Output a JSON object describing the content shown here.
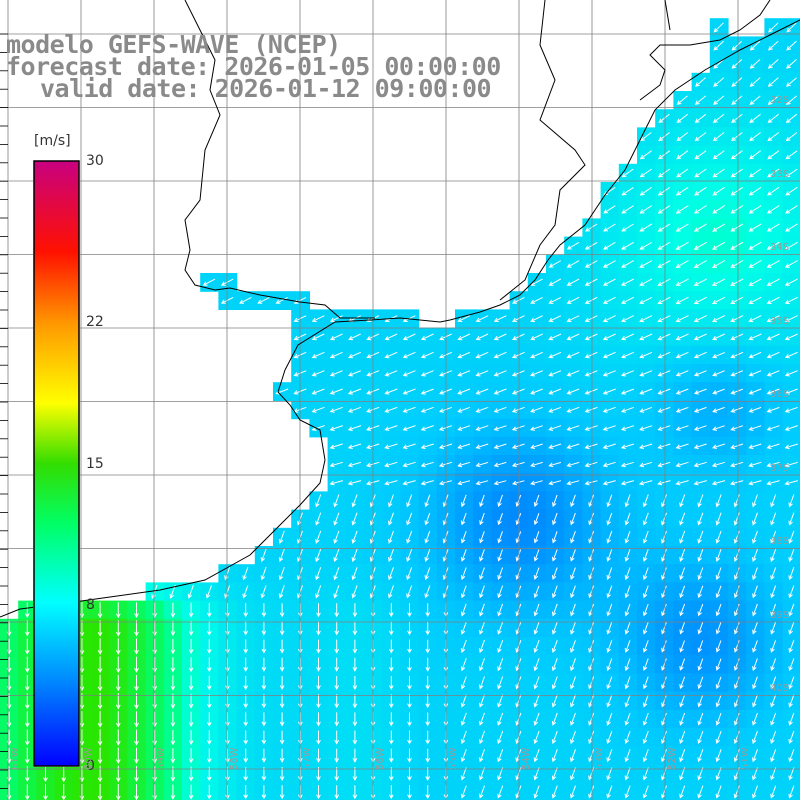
{
  "title": {
    "model": "modelo GEFS-WAVE (NCEP)",
    "forecast": "forecast date: 2026-01-05 00:00:00",
    "valid": "valid date: 2026-01-12 09:00:00"
  },
  "colorbar": {
    "unit": "[m/s]",
    "ticks": [
      "30",
      "22",
      "15",
      "8",
      "0"
    ],
    "tick_values": [
      30,
      22,
      15,
      8,
      0
    ],
    "range": [
      0,
      30
    ],
    "colors": [
      "#0000ff",
      "#00aaff",
      "#00ffff",
      "#00ff00",
      "#ffff00",
      "#ff9900",
      "#ff0000",
      "#cc0066"
    ]
  },
  "lat_labels": [
    "32S",
    "33S",
    "34S",
    "35S",
    "36S",
    "37S",
    "38S",
    "39S",
    "40S"
  ],
  "lon_labels": [
    "61W",
    "60W",
    "59W",
    "58W",
    "57W",
    "56W",
    "55W",
    "54W",
    "53W",
    "52W",
    "51W"
  ],
  "colors": {
    "land": "#ffffff",
    "coast": "#000000",
    "grid": "#808080",
    "arrow": "#ffffff",
    "title": "#8a8a8a"
  }
}
